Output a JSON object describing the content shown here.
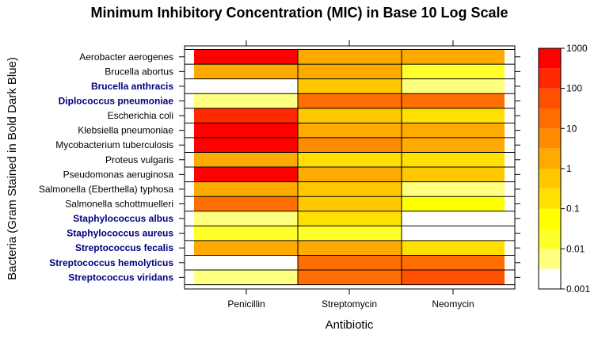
{
  "chart_data": {
    "type": "heatmap",
    "title": "Minimum Inhibitory Concentration (MIC) in Base 10 Log Scale",
    "xlabel": "Antibiotic",
    "ylabel": "Bacteria (Gram Stained in Bold Dark Blue)",
    "columns": [
      "Penicillin",
      "Streptomycin",
      "Neomycin"
    ],
    "rows": [
      {
        "name": "Aerobacter aerogenes",
        "gram_negative_bold": false
      },
      {
        "name": "Brucella abortus",
        "gram_negative_bold": false
      },
      {
        "name": "Brucella anthracis",
        "gram_negative_bold": true
      },
      {
        "name": "Diplococcus pneumoniae",
        "gram_negative_bold": true
      },
      {
        "name": "Escherichia coli",
        "gram_negative_bold": false
      },
      {
        "name": "Klebsiella pneumoniae",
        "gram_negative_bold": false
      },
      {
        "name": "Mycobacterium tuberculosis",
        "gram_negative_bold": false
      },
      {
        "name": "Proteus vulgaris",
        "gram_negative_bold": false
      },
      {
        "name": "Pseudomonas aeruginosa",
        "gram_negative_bold": false
      },
      {
        "name": "Salmonella (Eberthella) typhosa",
        "gram_negative_bold": false
      },
      {
        "name": "Salmonella schottmuelleri",
        "gram_negative_bold": false
      },
      {
        "name": "Staphylococcus albus",
        "gram_negative_bold": true
      },
      {
        "name": "Staphylococcus aureus",
        "gram_negative_bold": true
      },
      {
        "name": "Streptococcus fecalis",
        "gram_negative_bold": true
      },
      {
        "name": "Streptococcus hemolyticus",
        "gram_negative_bold": true
      },
      {
        "name": "Streptococcus viridans",
        "gram_negative_bold": true
      }
    ],
    "mic_values": [
      [
        870,
        1,
        1.6
      ],
      [
        1,
        2,
        0.02
      ],
      [
        0.001,
        0.4,
        0.007
      ],
      [
        0.005,
        11,
        10
      ],
      [
        100,
        0.4,
        0.1
      ],
      [
        850,
        1.2,
        1
      ],
      [
        800,
        5,
        2
      ],
      [
        3,
        0.1,
        0.1
      ],
      [
        850,
        2,
        0.4
      ],
      [
        1,
        0.4,
        0.008
      ],
      [
        10,
        0.8,
        0.09
      ],
      [
        0.007,
        0.1,
        0.001
      ],
      [
        0.03,
        0.03,
        0.001
      ],
      [
        1,
        1,
        0.1
      ],
      [
        0.001,
        14,
        10
      ],
      [
        0.005,
        10,
        40
      ]
    ],
    "colorbar": {
      "label_ticks": [
        "0.001",
        "0.01",
        "0.1",
        "1",
        "10",
        "100",
        "1000"
      ],
      "log10_range": [
        -3,
        3
      ],
      "levels": 12,
      "palette": [
        "#FFFFFF",
        "#FFFF80",
        "#FFFF2A",
        "#FFFF00",
        "#FFE000",
        "#FFC800",
        "#FFAA00",
        "#FF8C00",
        "#FF6E00",
        "#FF5000",
        "#FF2800",
        "#FF0000"
      ]
    },
    "grid": true
  }
}
